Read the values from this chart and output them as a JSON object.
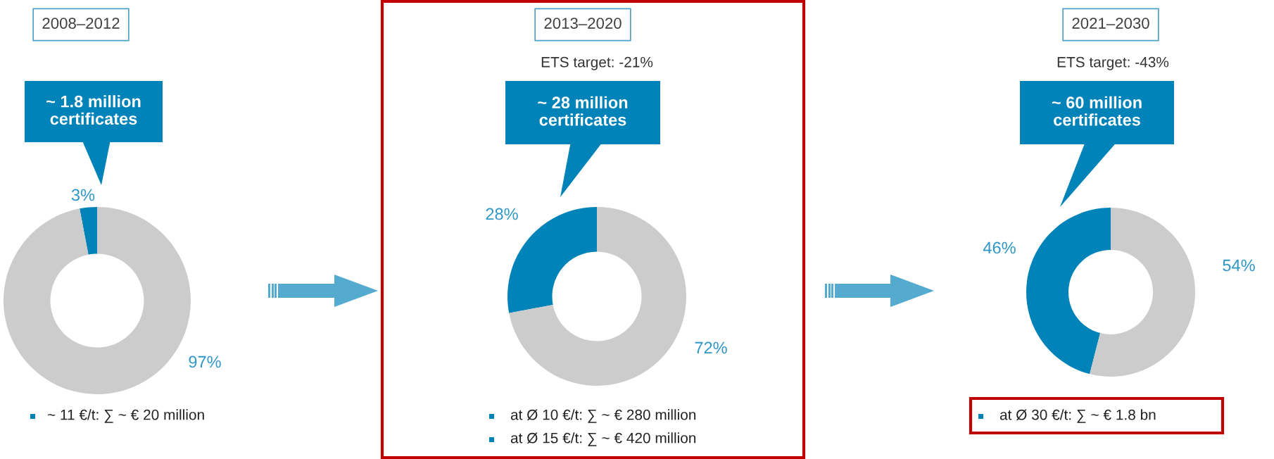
{
  "chart_data": [
    {
      "type": "donut",
      "title": "2008–2012",
      "categories": [
        null,
        null
      ],
      "values": [
        3,
        97
      ],
      "colors": [
        "#0083b8",
        "#cccccc"
      ],
      "value_labels": [
        "3%",
        "97%"
      ],
      "annotations": [
        "~ 1.8 million\ncertificates",
        "~ 11 €/t: ∑ ~ € 20 million"
      ]
    },
    {
      "type": "donut",
      "title": "2013–2020",
      "subtitle": "ETS target: -21%",
      "categories": [
        null,
        null
      ],
      "values": [
        28,
        72
      ],
      "colors": [
        "#0083b8",
        "#cccccc"
      ],
      "value_labels": [
        "28%",
        "72%"
      ],
      "annotations": [
        "~ 28 million\ncertificates",
        "at Ø 10 €/t: ∑ ~ € 280 million",
        "at Ø 15 €/t: ∑ ~ € 420 million"
      ]
    },
    {
      "type": "donut",
      "title": "2021–2030",
      "subtitle": "ETS target: -43%",
      "categories": [
        null,
        null
      ],
      "values": [
        46,
        54
      ],
      "colors": [
        "#0083b8",
        "#cccccc"
      ],
      "value_labels": [
        "46%",
        "54%"
      ],
      "annotations": [
        "~ 60 million\ncertificates",
        "at Ø 30 €/t: ∑ ~ € 1.8 bn"
      ]
    }
  ]
}
